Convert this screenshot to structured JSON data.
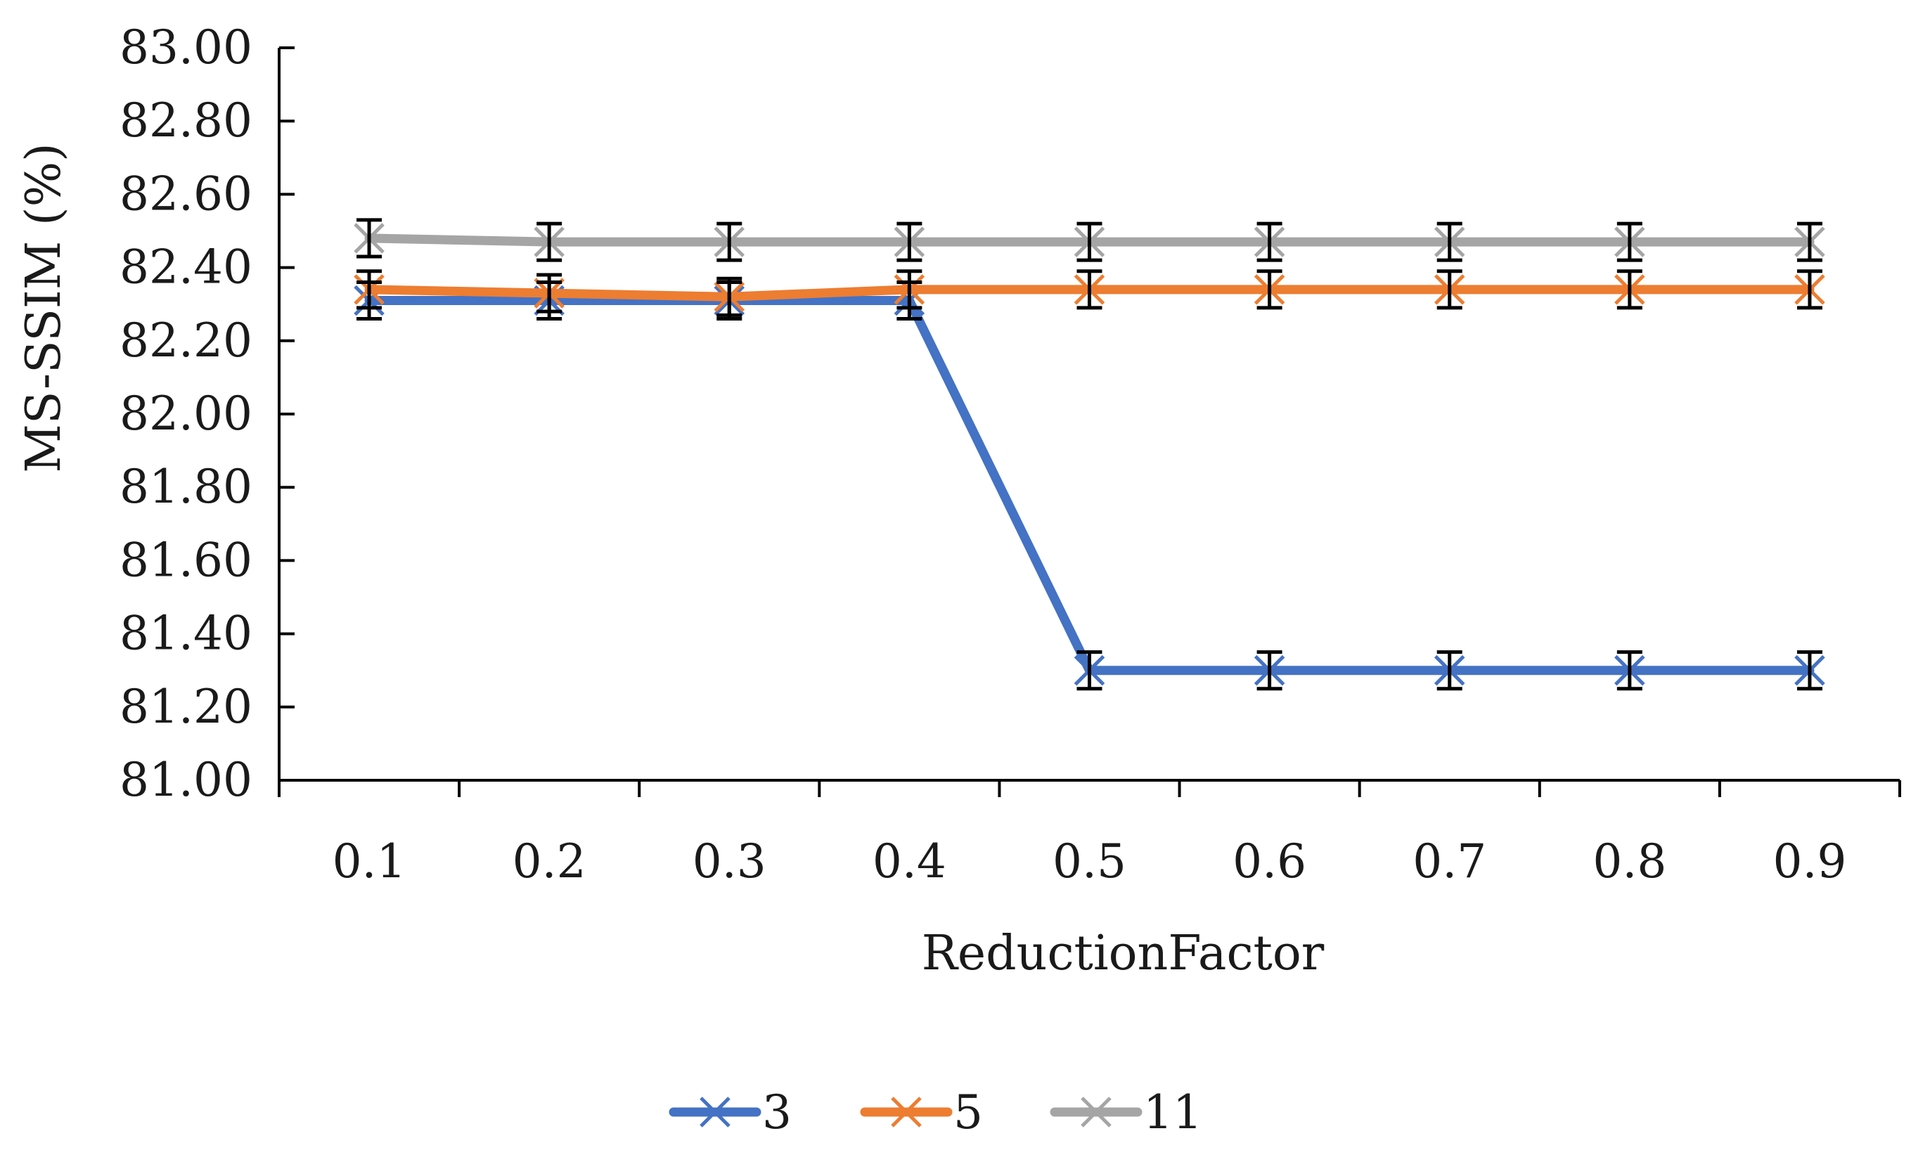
{
  "chart_data": {
    "type": "line",
    "title": "",
    "xlabel": "ReductionFactor",
    "ylabel": "MS-SSIM (%)",
    "x": [
      0.1,
      0.2,
      0.3,
      0.4,
      0.5,
      0.6,
      0.7,
      0.8,
      0.9
    ],
    "categories": [
      "0.1",
      "0.2",
      "0.3",
      "0.4",
      "0.5",
      "0.6",
      "0.7",
      "0.8",
      "0.9"
    ],
    "ylim": [
      81.0,
      83.0
    ],
    "yticks": [
      "81.00",
      "81.20",
      "81.40",
      "81.60",
      "81.80",
      "82.00",
      "82.20",
      "82.40",
      "82.60",
      "82.80",
      "83.00"
    ],
    "grid": false,
    "legend_position": "bottom",
    "error_bars": true,
    "series": [
      {
        "name": "3",
        "color": "#4472C4",
        "marker": "x",
        "values": [
          82.31,
          82.31,
          82.31,
          82.31,
          81.3,
          81.3,
          81.3,
          81.3,
          81.3
        ],
        "errors": [
          0.05,
          0.05,
          0.05,
          0.05,
          0.05,
          0.05,
          0.05,
          0.05,
          0.05
        ]
      },
      {
        "name": "5",
        "color": "#ED7D31",
        "marker": "x",
        "values": [
          82.34,
          82.33,
          82.32,
          82.34,
          82.34,
          82.34,
          82.34,
          82.34,
          82.34
        ],
        "errors": [
          0.05,
          0.05,
          0.05,
          0.05,
          0.05,
          0.05,
          0.05,
          0.05,
          0.05
        ]
      },
      {
        "name": "11",
        "color": "#A5A5A5",
        "marker": "x",
        "values": [
          82.48,
          82.47,
          82.47,
          82.47,
          82.47,
          82.47,
          82.47,
          82.47,
          82.47
        ],
        "errors": [
          0.05,
          0.05,
          0.05,
          0.05,
          0.05,
          0.05,
          0.05,
          0.05,
          0.05
        ]
      }
    ]
  }
}
